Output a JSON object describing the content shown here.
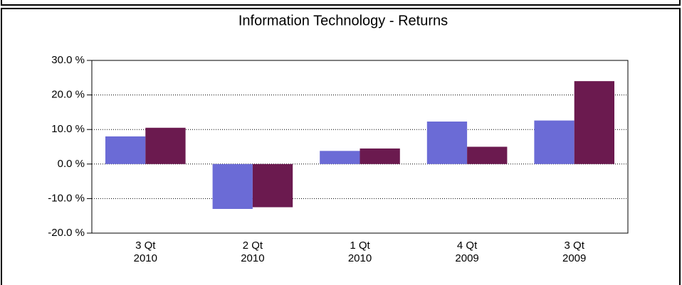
{
  "chart_data": {
    "type": "bar",
    "title": "Information Technology  -  Returns",
    "categories": [
      [
        "3 Qt",
        "2010"
      ],
      [
        "2 Qt",
        "2010"
      ],
      [
        "1 Qt",
        "2010"
      ],
      [
        "4 Qt",
        "2009"
      ],
      [
        "3 Qt",
        "2009"
      ]
    ],
    "series": [
      {
        "color": "#6b6bd6",
        "values": [
          8.0,
          -13.0,
          3.8,
          12.3,
          12.6
        ]
      },
      {
        "color": "#6b1a4f",
        "values": [
          10.5,
          -12.5,
          4.5,
          5.0,
          24.0
        ]
      }
    ],
    "ylim": [
      -20,
      30
    ],
    "yticks": [
      {
        "value": -20,
        "label": "-20.0 %"
      },
      {
        "value": -10,
        "label": "-10.0 %"
      },
      {
        "value": 0,
        "label": "0.0 %"
      },
      {
        "value": 10,
        "label": "10.0 %"
      },
      {
        "value": 20,
        "label": "20.0 %"
      },
      {
        "value": 30,
        "label": "30.0 %"
      }
    ],
    "grid": true
  }
}
